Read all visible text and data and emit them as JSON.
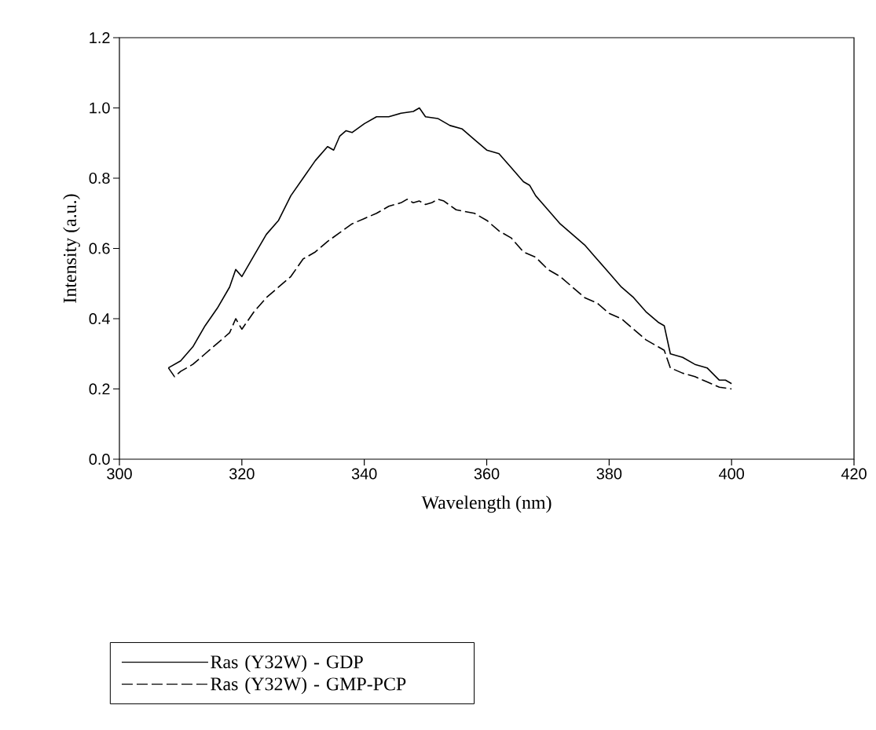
{
  "chart_data": {
    "type": "line",
    "xlabel": "Wavelength (nm)",
    "ylabel": "Intensity (a.u.)",
    "xlim": [
      300,
      420
    ],
    "ylim": [
      0,
      1.2
    ],
    "xticks": [
      300,
      320,
      340,
      360,
      380,
      400,
      420
    ],
    "yticks": [
      {
        "value": 0,
        "label": "0.0"
      },
      {
        "value": 0.2,
        "label": "0.2"
      },
      {
        "value": 0.4,
        "label": "0.4"
      },
      {
        "value": 0.6,
        "label": "0.6"
      },
      {
        "value": 0.8,
        "label": "0.8"
      },
      {
        "value": 1.0,
        "label": "1.0"
      },
      {
        "value": 1.2,
        "label": "1.2"
      }
    ],
    "legend": "bottom left",
    "series": [
      {
        "name": "Ras (Y32W) - GDP",
        "color": "#000000",
        "line_style": "solid",
        "x": [
          308,
          310,
          312,
          314,
          316,
          318,
          319,
          320,
          322,
          324,
          326,
          328,
          330,
          332,
          334,
          335,
          336,
          337,
          338,
          340,
          342,
          344,
          346,
          348,
          349,
          350,
          352,
          354,
          356,
          358,
          360,
          362,
          364,
          366,
          367,
          368,
          370,
          372,
          374,
          376,
          378,
          380,
          382,
          384,
          386,
          388,
          389,
          390,
          392,
          394,
          396,
          398,
          399,
          400
        ],
        "values": [
          0.26,
          0.28,
          0.32,
          0.38,
          0.43,
          0.49,
          0.54,
          0.52,
          0.58,
          0.64,
          0.68,
          0.75,
          0.8,
          0.85,
          0.89,
          0.88,
          0.92,
          0.935,
          0.93,
          0.955,
          0.975,
          0.975,
          0.985,
          0.99,
          1.0,
          0.975,
          0.97,
          0.95,
          0.94,
          0.91,
          0.88,
          0.87,
          0.83,
          0.79,
          0.78,
          0.75,
          0.71,
          0.67,
          0.64,
          0.61,
          0.57,
          0.53,
          0.49,
          0.46,
          0.42,
          0.39,
          0.38,
          0.3,
          0.29,
          0.27,
          0.26,
          0.225,
          0.225,
          0.215
        ]
      },
      {
        "name": "Ras (Y32W) - GMP-PCP",
        "color": "#000000",
        "line_style": "dashed",
        "x": [
          308,
          309,
          310,
          312,
          314,
          316,
          318,
          319,
          320,
          322,
          324,
          326,
          328,
          330,
          332,
          334,
          336,
          338,
          340,
          342,
          344,
          346,
          347,
          348,
          349,
          350,
          351,
          352,
          353,
          355,
          358,
          360,
          362,
          364,
          366,
          368,
          370,
          372,
          374,
          376,
          378,
          380,
          382,
          384,
          386,
          388,
          389,
          390,
          392,
          394,
          396,
          398,
          400
        ],
        "values": [
          0.26,
          0.235,
          0.25,
          0.27,
          0.3,
          0.33,
          0.36,
          0.4,
          0.37,
          0.42,
          0.46,
          0.49,
          0.52,
          0.57,
          0.59,
          0.62,
          0.645,
          0.67,
          0.685,
          0.7,
          0.72,
          0.73,
          0.74,
          0.73,
          0.735,
          0.725,
          0.73,
          0.74,
          0.735,
          0.71,
          0.7,
          0.68,
          0.65,
          0.63,
          0.59,
          0.575,
          0.54,
          0.52,
          0.49,
          0.46,
          0.445,
          0.415,
          0.4,
          0.37,
          0.34,
          0.32,
          0.31,
          0.26,
          0.245,
          0.235,
          0.22,
          0.205,
          0.2
        ]
      }
    ]
  }
}
